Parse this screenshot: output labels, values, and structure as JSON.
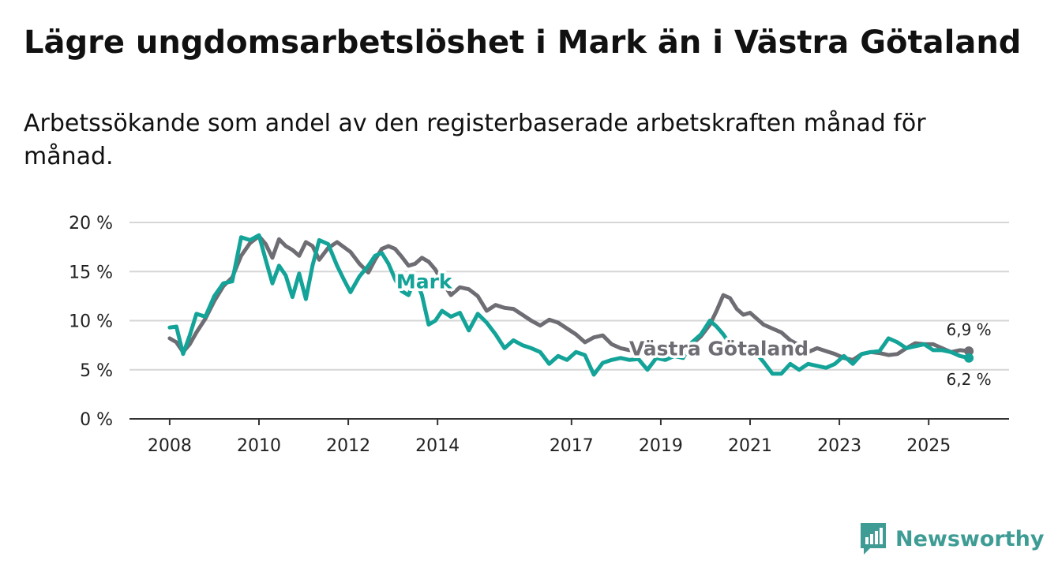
{
  "title": "Lägre ungdomsarbetslöshet i Mark än i Västra Götaland",
  "subtitle": "Arbetssökande som andel av den registerbaserade arbetskraften månad för månad.",
  "logo": {
    "text": "Newsworthy",
    "icon": "bar-chart-bubble-icon"
  },
  "colors": {
    "mark": "#13a398",
    "vg": "#6e6d73",
    "grid": "#d6d6d6",
    "axis": "#333333",
    "logo": "#3e9c95"
  },
  "chart_data": {
    "type": "line",
    "title": "Lägre ungdomsarbetslöshet i Mark än i Västra Götaland",
    "xlabel": "",
    "ylabel": "",
    "ylim": [
      0,
      20
    ],
    "xlim": [
      2007.1,
      2026.8
    ],
    "y_ticks": [
      0,
      5,
      10,
      15,
      20
    ],
    "y_tick_labels": [
      "0 %",
      "5 %",
      "10 %",
      "15 %",
      "20 %"
    ],
    "x_ticks": [
      2008,
      2010,
      2012,
      2014,
      2017,
      2019,
      2021,
      2023,
      2025
    ],
    "x_tick_labels": [
      "2008",
      "2010",
      "2012",
      "2014",
      "2017",
      "2019",
      "2021",
      "2023",
      "2025"
    ],
    "grid": true,
    "series": [
      {
        "name": "Västra Götaland",
        "label": "Västra Götaland",
        "end_label": "6,9 %",
        "x": [
          2008.0,
          2008.15,
          2008.3,
          2008.45,
          2008.6,
          2008.8,
          2009.0,
          2009.2,
          2009.4,
          2009.6,
          2009.8,
          2010.0,
          2010.15,
          2010.3,
          2010.45,
          2010.6,
          2010.75,
          2010.9,
          2011.05,
          2011.2,
          2011.35,
          2011.55,
          2011.75,
          2011.9,
          2012.05,
          2012.25,
          2012.45,
          2012.6,
          2012.75,
          2012.9,
          2013.05,
          2013.2,
          2013.35,
          2013.5,
          2013.65,
          2013.8,
          2013.95,
          2014.1,
          2014.3,
          2014.5,
          2014.7,
          2014.9,
          2015.1,
          2015.3,
          2015.5,
          2015.7,
          2015.9,
          2016.1,
          2016.3,
          2016.5,
          2016.7,
          2016.9,
          2017.1,
          2017.3,
          2017.5,
          2017.7,
          2017.9,
          2018.1,
          2018.3,
          2018.5,
          2018.7,
          2018.9,
          2019.1,
          2019.3,
          2019.5,
          2019.7,
          2019.9,
          2020.1,
          2020.25,
          2020.4,
          2020.55,
          2020.7,
          2020.85,
          2021.0,
          2021.15,
          2021.3,
          2021.5,
          2021.7,
          2021.9,
          2022.1,
          2022.3,
          2022.5,
          2022.7,
          2022.9,
          2023.1,
          2023.3,
          2023.5,
          2023.7,
          2023.9,
          2024.1,
          2024.3,
          2024.5,
          2024.7,
          2024.9,
          2025.1,
          2025.3,
          2025.5,
          2025.7,
          2025.9
        ],
        "y": [
          8.2,
          7.8,
          6.8,
          7.6,
          8.8,
          10.2,
          12.0,
          13.5,
          14.4,
          16.6,
          17.9,
          18.6,
          17.8,
          16.4,
          18.3,
          17.6,
          17.2,
          16.6,
          18.0,
          17.6,
          16.2,
          17.4,
          18.0,
          17.5,
          17.0,
          15.8,
          14.9,
          16.2,
          17.3,
          17.6,
          17.3,
          16.5,
          15.6,
          15.8,
          16.4,
          16.0,
          15.2,
          14.0,
          12.6,
          13.4,
          13.2,
          12.5,
          11.0,
          11.6,
          11.3,
          11.2,
          10.6,
          10.0,
          9.5,
          10.1,
          9.8,
          9.2,
          8.6,
          7.8,
          8.3,
          8.5,
          7.6,
          7.2,
          7.0,
          7.2,
          7.0,
          6.8,
          6.9,
          6.7,
          6.6,
          7.6,
          8.4,
          9.6,
          11.0,
          12.6,
          12.3,
          11.2,
          10.6,
          10.8,
          10.2,
          9.6,
          9.2,
          8.8,
          8.0,
          7.5,
          6.8,
          7.2,
          6.9,
          6.6,
          6.2,
          6.0,
          6.6,
          6.8,
          6.7,
          6.5,
          6.6,
          7.2,
          7.7,
          7.6,
          7.6,
          7.2,
          6.8,
          7.0,
          6.9
        ]
      },
      {
        "name": "Mark",
        "label": "Mark",
        "end_label": "6,2 %",
        "x": [
          2008.0,
          2008.15,
          2008.3,
          2008.45,
          2008.6,
          2008.8,
          2009.0,
          2009.2,
          2009.4,
          2009.6,
          2009.8,
          2010.0,
          2010.15,
          2010.3,
          2010.45,
          2010.6,
          2010.75,
          2010.9,
          2011.05,
          2011.2,
          2011.35,
          2011.55,
          2011.75,
          2011.9,
          2012.05,
          2012.25,
          2012.45,
          2012.6,
          2012.75,
          2012.9,
          2013.05,
          2013.2,
          2013.35,
          2013.5,
          2013.65,
          2013.8,
          2013.95,
          2014.1,
          2014.3,
          2014.5,
          2014.7,
          2014.9,
          2015.1,
          2015.3,
          2015.5,
          2015.7,
          2015.9,
          2016.1,
          2016.3,
          2016.5,
          2016.7,
          2016.9,
          2017.1,
          2017.3,
          2017.5,
          2017.7,
          2017.9,
          2018.1,
          2018.3,
          2018.5,
          2018.7,
          2018.9,
          2019.1,
          2019.3,
          2019.5,
          2019.7,
          2019.9,
          2020.1,
          2020.25,
          2020.4,
          2020.55,
          2020.7,
          2020.85,
          2021.0,
          2021.15,
          2021.3,
          2021.5,
          2021.7,
          2021.9,
          2022.1,
          2022.3,
          2022.5,
          2022.7,
          2022.9,
          2023.1,
          2023.3,
          2023.5,
          2023.7,
          2023.9,
          2024.1,
          2024.3,
          2024.5,
          2024.7,
          2024.9,
          2025.1,
          2025.3,
          2025.5,
          2025.7,
          2025.9
        ],
        "y": [
          9.3,
          9.4,
          6.6,
          8.5,
          10.7,
          10.4,
          12.5,
          13.8,
          14.0,
          18.5,
          18.2,
          18.7,
          16.2,
          13.8,
          15.6,
          14.6,
          12.4,
          14.8,
          12.2,
          15.6,
          18.2,
          17.8,
          15.6,
          14.2,
          12.9,
          14.5,
          15.6,
          16.6,
          16.9,
          15.8,
          14.2,
          13.0,
          12.6,
          14.4,
          12.6,
          9.6,
          10.0,
          11.0,
          10.4,
          10.8,
          9.0,
          10.7,
          9.8,
          8.6,
          7.2,
          8.0,
          7.5,
          7.2,
          6.8,
          5.6,
          6.4,
          6.0,
          6.8,
          6.5,
          4.5,
          5.7,
          6.0,
          6.2,
          6.0,
          6.1,
          5.0,
          6.2,
          6.0,
          6.4,
          6.2,
          7.8,
          8.6,
          10.0,
          9.4,
          8.6,
          7.6,
          7.2,
          7.0,
          6.8,
          6.6,
          5.8,
          4.6,
          4.6,
          5.6,
          5.0,
          5.6,
          5.4,
          5.2,
          5.6,
          6.4,
          5.6,
          6.6,
          6.8,
          6.9,
          8.2,
          7.8,
          7.2,
          7.4,
          7.6,
          7.0,
          7.0,
          6.8,
          6.4,
          6.2
        ]
      }
    ]
  }
}
